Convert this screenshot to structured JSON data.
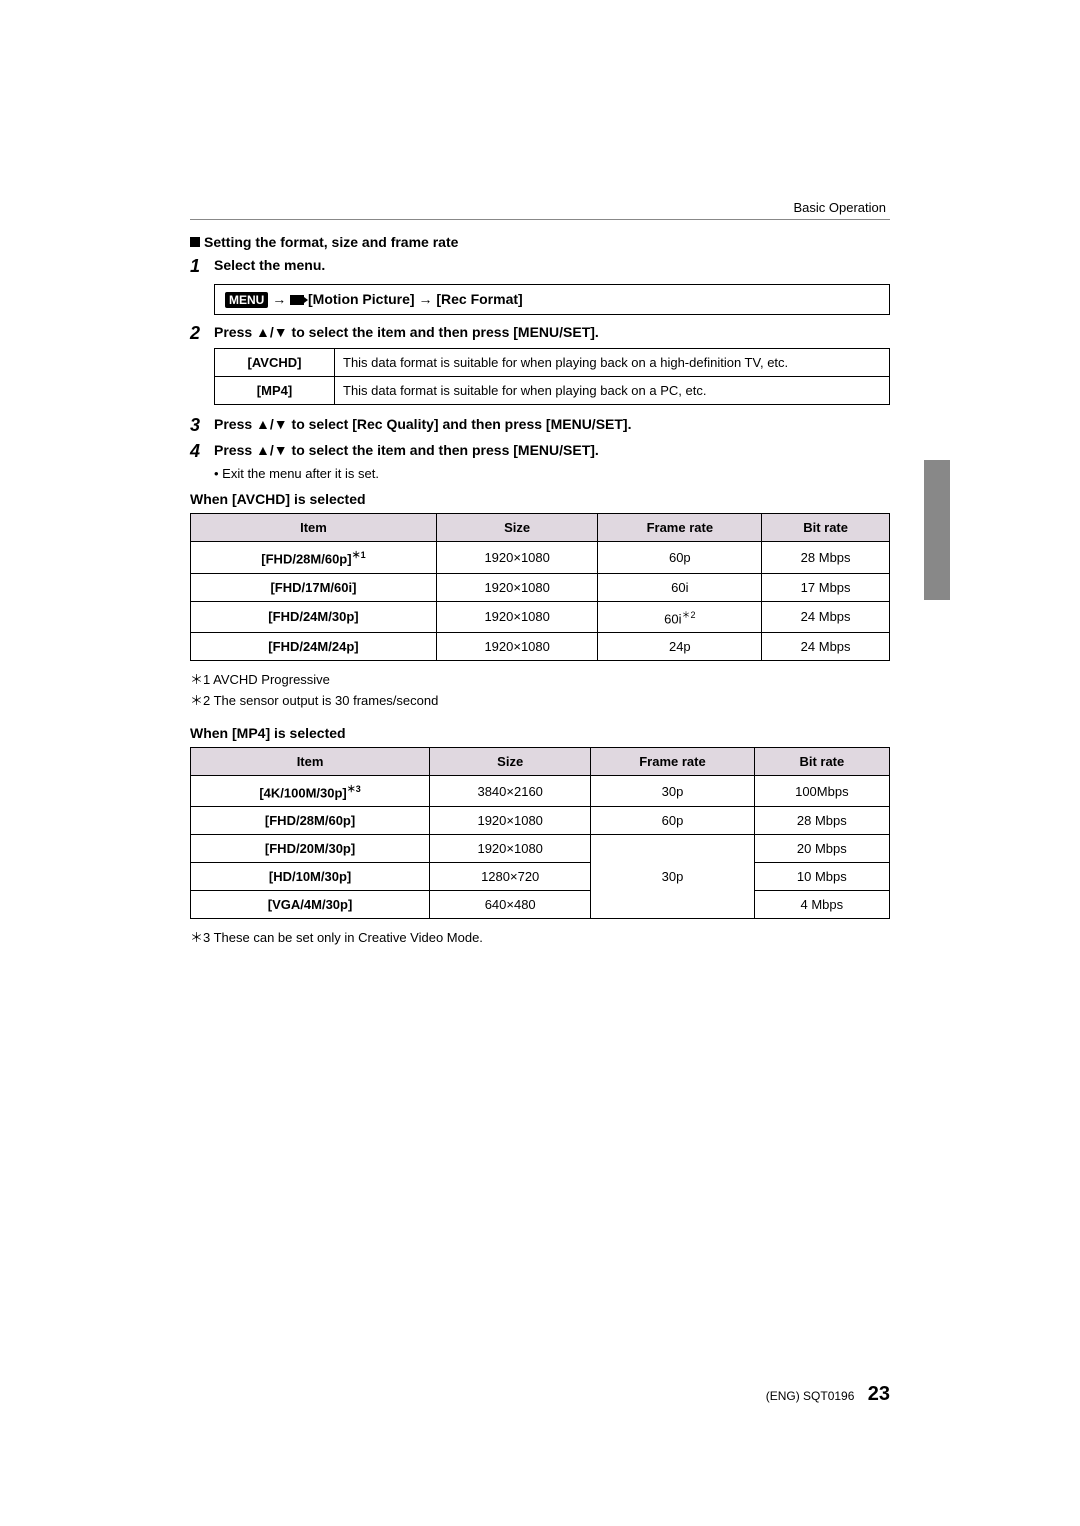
{
  "header": {
    "section": "Basic Operation"
  },
  "heading": "Setting the format, size and frame rate",
  "steps": {
    "s1": {
      "num": "1",
      "text": "Select the menu."
    },
    "menu": {
      "label": "MENU",
      "path1": "[Motion Picture]",
      "path2": "[Rec Format]"
    },
    "s2": {
      "num": "2",
      "text": "Press ▲/▼ to select the item and then press [MENU/SET]."
    },
    "formats": {
      "avchd": {
        "label": "[AVCHD]",
        "desc": "This data format is suitable for when playing back on a high-definition TV, etc."
      },
      "mp4": {
        "label": "[MP4]",
        "desc": "This data format is suitable for when playing back on a PC, etc."
      }
    },
    "s3": {
      "num": "3",
      "text": "Press ▲/▼ to select [Rec Quality] and then press [MENU/SET]."
    },
    "s4": {
      "num": "4",
      "text": "Press ▲/▼ to select the item and then press [MENU/SET]."
    },
    "exit": "• Exit the menu after it is set."
  },
  "avchd": {
    "heading": "When [AVCHD] is selected",
    "columns": [
      "Item",
      "Size",
      "Frame rate",
      "Bit rate"
    ],
    "rows": [
      {
        "item": "[FHD/28M/60p]",
        "sup": "＊1",
        "size": "1920×1080",
        "rate": "60p",
        "bit": "28 Mbps"
      },
      {
        "item": "[FHD/17M/60i]",
        "sup": "",
        "size": "1920×1080",
        "rate": "60i",
        "bit": "17 Mbps"
      },
      {
        "item": "[FHD/24M/30p]",
        "sup": "",
        "size": "1920×1080",
        "rate": "60i",
        "rate_sup": "＊2",
        "bit": "24 Mbps"
      },
      {
        "item": "[FHD/24M/24p]",
        "sup": "",
        "size": "1920×1080",
        "rate": "24p",
        "bit": "24 Mbps"
      }
    ],
    "notes": {
      "n1": "＊1 AVCHD Progressive",
      "n2": "＊2 The sensor output is 30 frames/second"
    }
  },
  "mp4": {
    "heading": "When [MP4] is selected",
    "columns": [
      "Item",
      "Size",
      "Frame rate",
      "Bit rate"
    ],
    "r0": {
      "item": "[4K/100M/30p]",
      "sup": "＊3",
      "size": "3840×2160",
      "rate": "30p",
      "bit": "100Mbps"
    },
    "r1": {
      "item": "[FHD/28M/60p]",
      "size": "1920×1080",
      "rate": "60p",
      "bit": "28 Mbps"
    },
    "r2": {
      "item": "[FHD/20M/30p]",
      "size": "1920×1080",
      "bit": "20 Mbps"
    },
    "r3": {
      "item": "[HD/10M/30p]",
      "size": "1280×720",
      "rate": "30p",
      "bit": "10 Mbps"
    },
    "r4": {
      "item": "[VGA/4M/30p]",
      "size": "640×480",
      "bit": "4 Mbps"
    },
    "notes": {
      "n3": "＊3 These can be set only in Creative Video Mode."
    }
  },
  "footer": {
    "code": "(ENG) SQT0196",
    "page": "23"
  },
  "colors": {
    "header_bg": "#e0d8e0",
    "border": "#000000",
    "tab": "#888888"
  }
}
